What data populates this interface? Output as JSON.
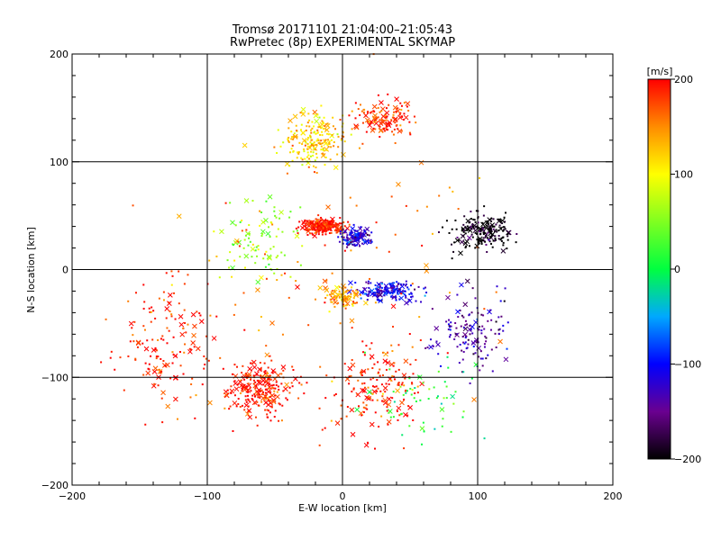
{
  "chart_data": {
    "type": "scatter",
    "title": "Tromsø 20171101 21:04:00–21:05:43",
    "subtitle": "RwPretec (8p) EXPERIMENTAL SKYMAP",
    "xlabel": "E-W location [km]",
    "ylabel": "N-S location [km]",
    "xlim": [
      -200,
      200
    ],
    "ylim": [
      -200,
      200
    ],
    "xticks": [
      "-200",
      "-100",
      "0",
      "100",
      "200"
    ],
    "yticks": [
      "-200",
      "-100",
      "0",
      "100",
      "200"
    ],
    "grid": true,
    "colorbar": {
      "label": "[m/s]",
      "range": [
        -200,
        200
      ],
      "ticks": [
        "200",
        "100",
        "0",
        "-100",
        "-200"
      ],
      "colormap": "rainbow (black -> purple -> blue -> cyan -> green -> yellow -> orange -> red)"
    },
    "markers": [
      "point",
      "x"
    ],
    "clusters": [
      {
        "center": [
          -15,
          40
        ],
        "spread": [
          18,
          8
        ],
        "velocity": 195,
        "count": 260
      },
      {
        "center": [
          -20,
          120
        ],
        "spread": [
          25,
          30
        ],
        "velocity": 120,
        "count": 200
      },
      {
        "center": [
          30,
          140
        ],
        "spread": [
          25,
          20
        ],
        "velocity": 185,
        "count": 130
      },
      {
        "center": [
          -60,
          -110
        ],
        "spread": [
          30,
          30
        ],
        "velocity": 195,
        "count": 240
      },
      {
        "center": [
          -130,
          -70
        ],
        "spread": [
          45,
          70
        ],
        "velocity": 190,
        "count": 150
      },
      {
        "center": [
          10,
          30
        ],
        "spread": [
          14,
          10
        ],
        "velocity": -120,
        "count": 130
      },
      {
        "center": [
          35,
          -20
        ],
        "spread": [
          25,
          10
        ],
        "velocity": -110,
        "count": 170
      },
      {
        "center": [
          105,
          35
        ],
        "spread": [
          28,
          22
        ],
        "velocity": -200,
        "count": 200
      },
      {
        "center": [
          95,
          -60
        ],
        "spread": [
          35,
          45
        ],
        "velocity": -140,
        "count": 140
      },
      {
        "center": [
          0,
          -25
        ],
        "spread": [
          16,
          12
        ],
        "velocity": 140,
        "count": 90
      },
      {
        "center": [
          25,
          -110
        ],
        "spread": [
          40,
          50
        ],
        "velocity": 190,
        "count": 160
      },
      {
        "center": [
          -60,
          30
        ],
        "spread": [
          35,
          45
        ],
        "velocity": 60,
        "count": 90
      },
      {
        "center": [
          60,
          -120
        ],
        "spread": [
          50,
          50
        ],
        "velocity": 20,
        "count": 60
      },
      {
        "center": [
          0,
          0
        ],
        "spread": [
          160,
          160
        ],
        "velocity": 160,
        "count": 120
      }
    ]
  }
}
